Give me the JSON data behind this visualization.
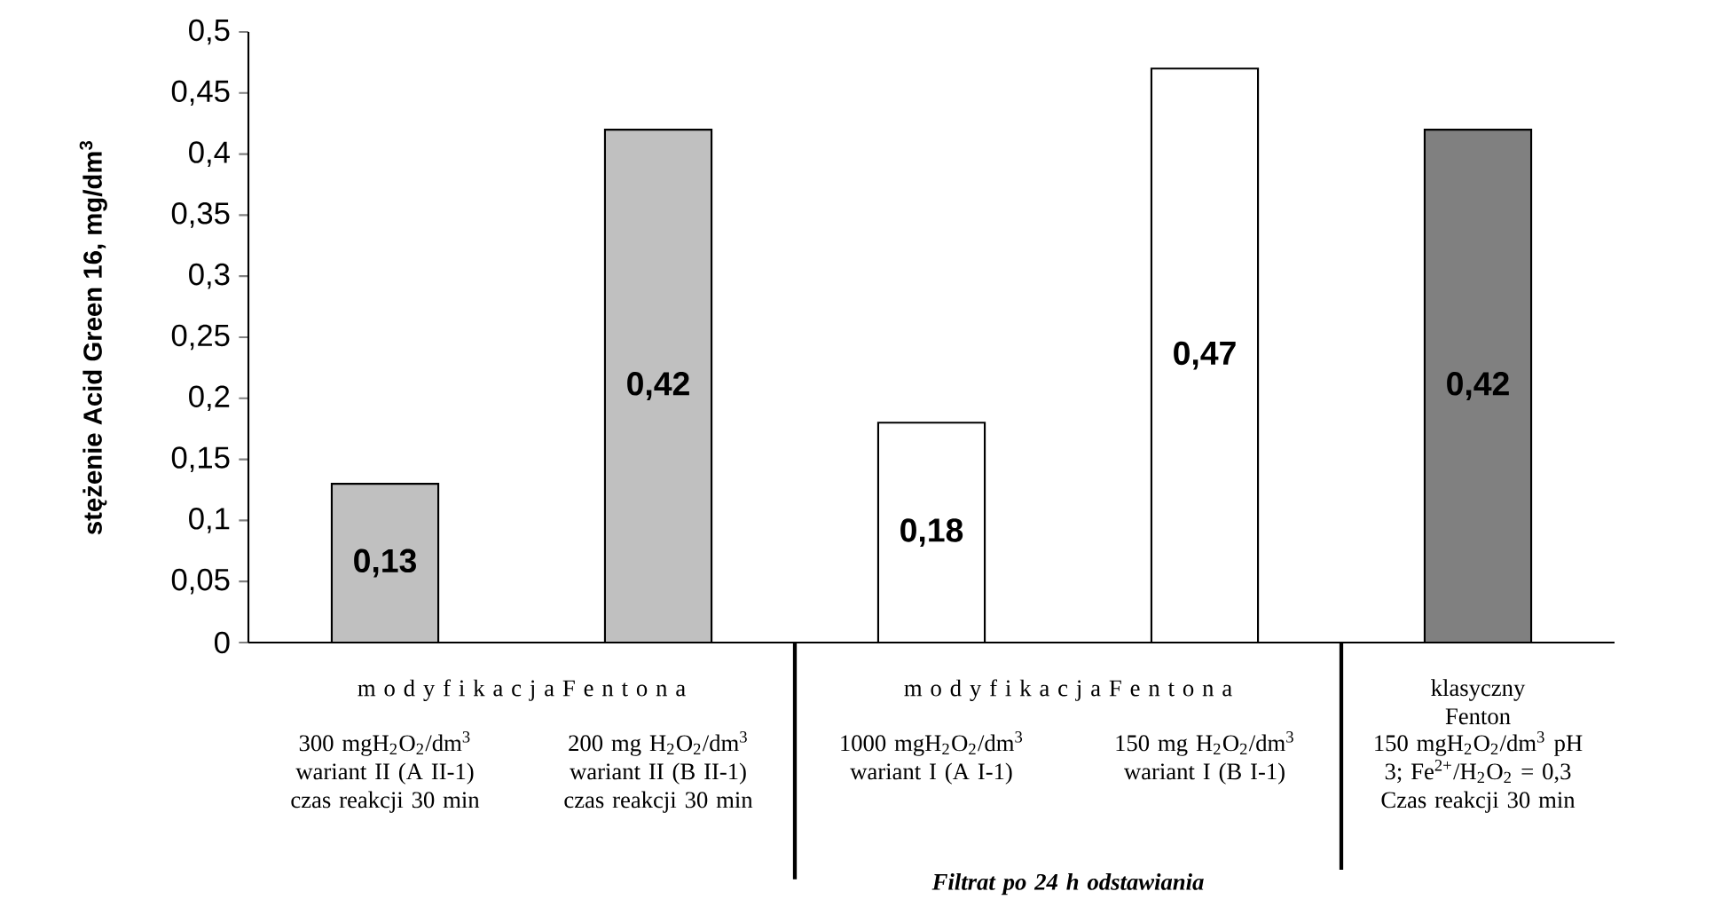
{
  "chart_data": {
    "type": "bar",
    "ylabel": "stężenie Acid Green 16, mg/dm$^{3}$",
    "categories": [
      "300 mgH$_{2}$O$_{2}$/dm$^{3}$ wariant II (A II-1) czas reakcji 30 min",
      "200 mg H$_{2}$O$_{2}$/dm$^{3}$ wariant II (B II-1) czas reakcji 30 min",
      "1000 mgH$_{2}$O$_{2}$/dm$^{3}$ wariant I (A I-1)",
      "150 mg H$_{2}$O$_{2}$/dm$^{3}$ wariant I (B I-1)",
      "150 mgH$_{2}$O$_{2}$/dm$^{3}$ pH 3; Fe$^{2+}$/H$_{2}$O$_{2}$ = 0,3 Czas reakcji 30 min"
    ],
    "values": [
      0.13,
      0.42,
      0.18,
      0.47,
      0.42
    ],
    "value_labels": [
      "0,13",
      "0,42",
      "0,18",
      "0,47",
      "0,42"
    ],
    "colors": [
      "#c0c0c0",
      "#c0c0c0",
      "#ffffff",
      "#ffffff",
      "#808080"
    ],
    "ylim": [
      0,
      0.5
    ],
    "yticks": [
      0,
      {
        "value": 0.05,
        "label": "0,05"
      },
      {
        "value": 0.1,
        "label": "0,1"
      },
      {
        "value": 0.15,
        "label": "0,15"
      },
      {
        "value": 0.2,
        "label": "0,2"
      },
      {
        "value": 0.25,
        "label": "0,25"
      },
      {
        "value": 0.3,
        "label": "0,3"
      },
      {
        "value": 0.35,
        "label": "0,35"
      },
      {
        "value": 0.4,
        "label": "0,4"
      },
      {
        "value": 0.45,
        "label": "0,45"
      },
      {
        "value": 0.5,
        "label": "0,5"
      }
    ],
    "annotations": [
      "m o d y f i k a c j a F e n t o n a",
      "m o d y f i k a c j a F e n t o n a",
      "klasyczny Fenton",
      "Filtrat po 24 h odstawiania"
    ],
    "grid": false
  }
}
